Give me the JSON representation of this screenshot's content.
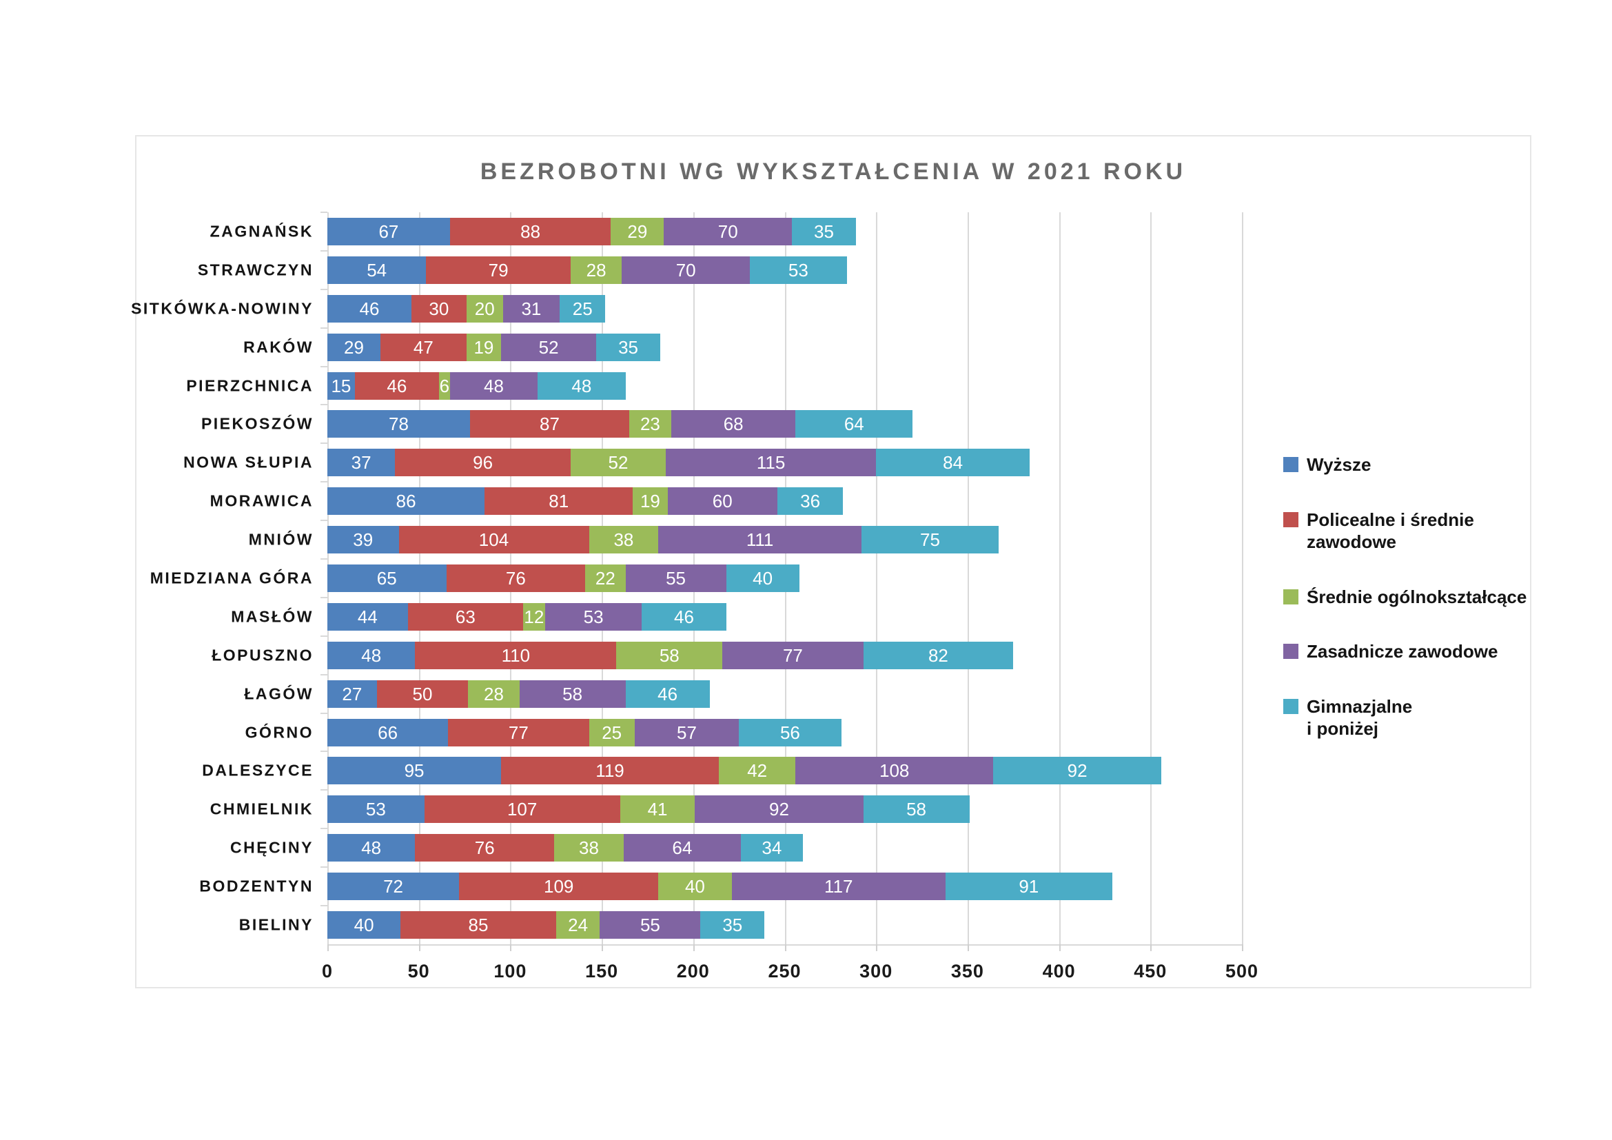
{
  "title": "BEZROBOTNI WG WYKSZTAŁCENIA W 2021 ROKU",
  "chart_data": {
    "type": "bar",
    "orientation": "horizontal",
    "stacked": true,
    "grid": true,
    "legend_position": "right",
    "xlabel": "",
    "ylabel": "",
    "xlim": [
      0,
      500
    ],
    "x_ticks": [
      0,
      50,
      100,
      150,
      200,
      250,
      300,
      350,
      400,
      450,
      500
    ],
    "categories": [
      "ZAGNAŃSK",
      "STRAWCZYN",
      "SITKÓWKA-NOWINY",
      "RAKÓW",
      "PIERZCHNICA",
      "PIEKOSZÓW",
      "NOWA SŁUPIA",
      "MORAWICA",
      "MNIÓW",
      "MIEDZIANA GÓRA",
      "MASŁÓW",
      "ŁOPUSZNO",
      "ŁAGÓW",
      "GÓRNO",
      "DALESZYCE",
      "CHMIELNIK",
      "CHĘCINY",
      "BODZENTYN",
      "BIELINY"
    ],
    "series": [
      {
        "name": "Wyższe",
        "legend_label": "Wyższe",
        "color": "#4f81bd",
        "values": [
          67,
          54,
          46,
          29,
          15,
          78,
          37,
          86,
          39,
          65,
          44,
          48,
          27,
          66,
          95,
          53,
          48,
          72,
          40
        ]
      },
      {
        "name": "Policealne i średnie zawodowe",
        "legend_label": "Policealne i średnie zawodowe",
        "color": "#c0504d",
        "values": [
          88,
          79,
          30,
          47,
          46,
          87,
          96,
          81,
          104,
          76,
          63,
          110,
          50,
          77,
          119,
          107,
          76,
          109,
          85
        ]
      },
      {
        "name": "Średnie ogólnokształcące",
        "legend_label": "Średnie ogólnokształcące",
        "color": "#9bbb59",
        "values": [
          29,
          28,
          20,
          19,
          6,
          23,
          52,
          19,
          38,
          22,
          12,
          58,
          28,
          25,
          42,
          41,
          38,
          40,
          24
        ]
      },
      {
        "name": "Zasadnicze zawodowe",
        "legend_label": "Zasadnicze zawodowe",
        "color": "#8064a2",
        "values": [
          70,
          70,
          31,
          52,
          48,
          68,
          115,
          60,
          111,
          55,
          53,
          77,
          58,
          57,
          108,
          92,
          64,
          117,
          55
        ]
      },
      {
        "name": "Gimnazjalne i poniżej",
        "legend_label": "Gimnazjalne\ni poniżej",
        "color": "#4bacc6",
        "values": [
          35,
          53,
          25,
          35,
          48,
          64,
          84,
          36,
          75,
          40,
          46,
          82,
          46,
          56,
          92,
          58,
          34,
          91,
          35
        ]
      }
    ]
  }
}
